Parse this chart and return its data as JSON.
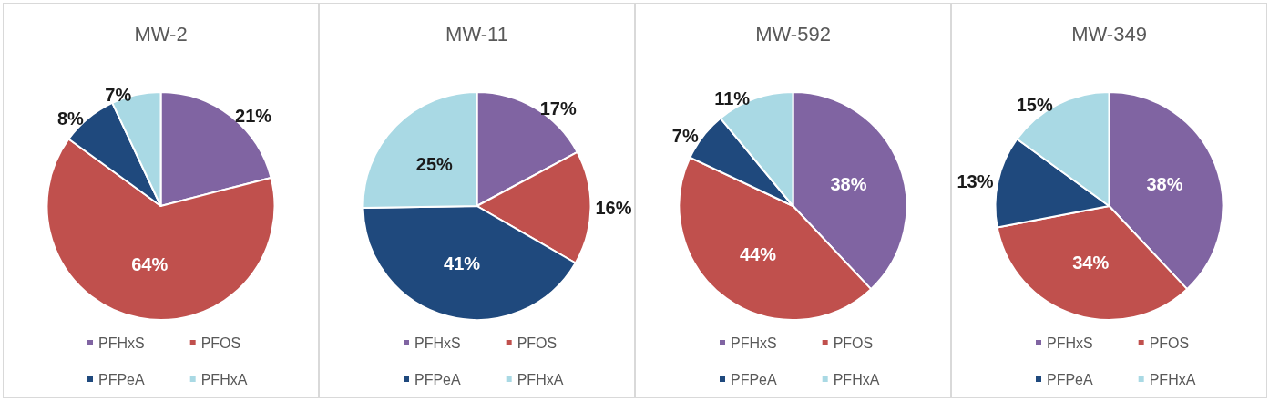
{
  "chart_data": [
    {
      "type": "pie",
      "title": "MW-2",
      "categories": [
        "PFHxS",
        "PFOS",
        "PFPeA",
        "PFHxA"
      ],
      "values": [
        21,
        64,
        8,
        7
      ],
      "colors": [
        "#8064a2",
        "#c0504d",
        "#1f497d",
        "#a9d9e4"
      ],
      "value_labels": [
        "21%",
        "64%",
        "8%",
        "7%"
      ],
      "legend": "bottom"
    },
    {
      "type": "pie",
      "title": "MW-11",
      "categories": [
        "PFHxS",
        "PFOS",
        "PFPeA",
        "PFHxA"
      ],
      "values": [
        17,
        16,
        41,
        25
      ],
      "colors": [
        "#8064a2",
        "#c0504d",
        "#1f497d",
        "#a9d9e4"
      ],
      "value_labels": [
        "17%",
        "16%",
        "41%",
        "25%"
      ],
      "legend": "bottom"
    },
    {
      "type": "pie",
      "title": "MW-592",
      "categories": [
        "PFHxS",
        "PFOS",
        "PFPeA",
        "PFHxA"
      ],
      "values": [
        38,
        44,
        7,
        11
      ],
      "colors": [
        "#8064a2",
        "#c0504d",
        "#1f497d",
        "#a9d9e4"
      ],
      "value_labels": [
        "38%",
        "44%",
        "7%",
        "11%"
      ],
      "legend": "bottom"
    },
    {
      "type": "pie",
      "title": "MW-349",
      "categories": [
        "PFHxS",
        "PFOS",
        "PFPeA",
        "PFHxA"
      ],
      "values": [
        38,
        34,
        13,
        15
      ],
      "colors": [
        "#8064a2",
        "#c0504d",
        "#1f497d",
        "#a9d9e4"
      ],
      "value_labels": [
        "38%",
        "34%",
        "13%",
        "15%"
      ],
      "legend": "bottom"
    }
  ]
}
